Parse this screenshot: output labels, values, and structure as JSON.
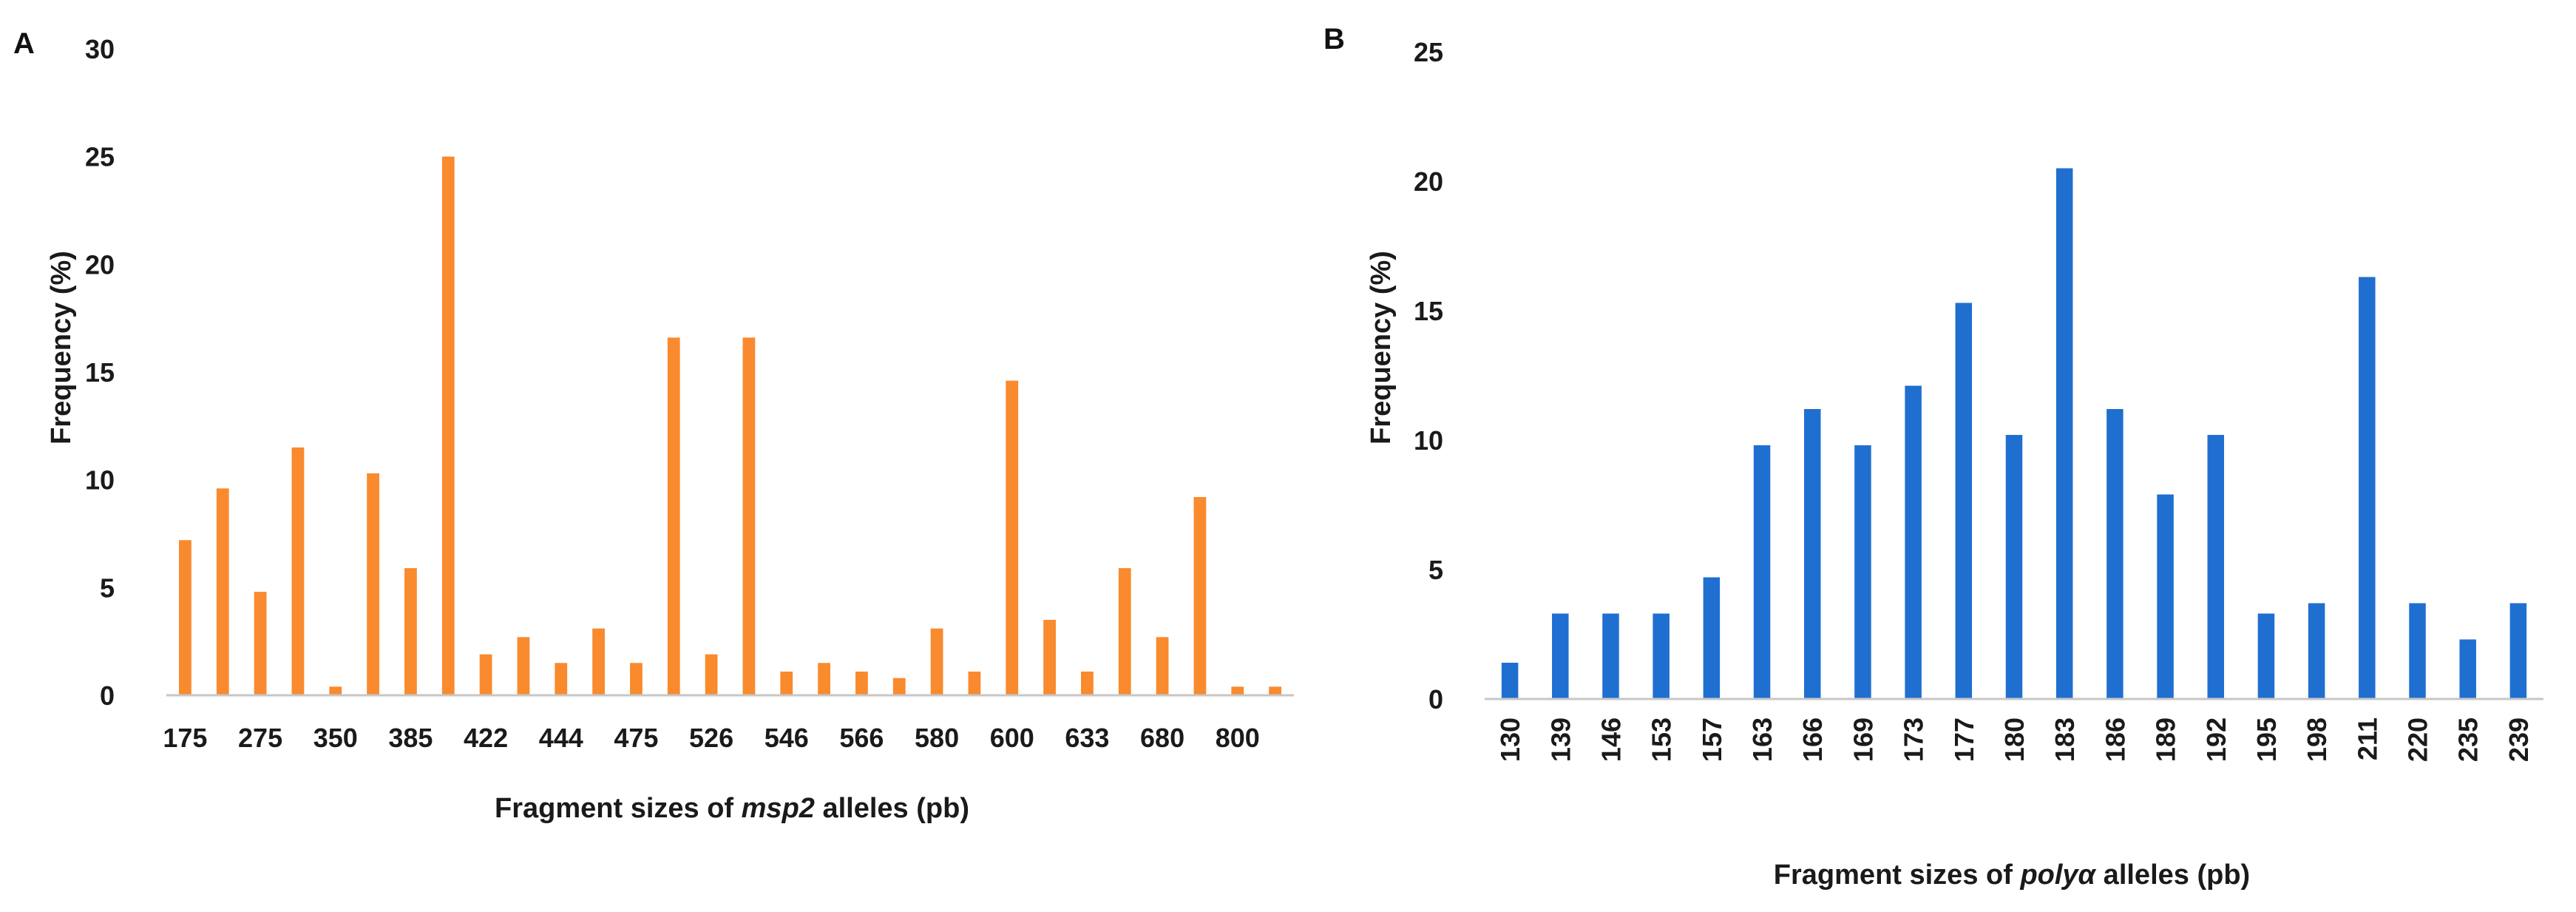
{
  "chart_data": [
    {
      "panel": "A",
      "type": "bar",
      "color": "#F98A2E",
      "ylabel": "Frequency (%)",
      "xlabel_parts": [
        "Fragment sizes of ",
        "msp2",
        " alleles (pb)"
      ],
      "ylim": [
        0,
        30
      ],
      "yticks": [
        0,
        5,
        10,
        15,
        20,
        25,
        30
      ],
      "grid": false,
      "legend": "none",
      "tick_label_every": 2,
      "categories": [
        "175",
        "",
        "275",
        "",
        "350",
        "",
        "385",
        "",
        "422",
        "",
        "444",
        "",
        "475",
        "",
        "526",
        "",
        "546",
        "",
        "566",
        "",
        "580",
        "",
        "600",
        "",
        "633",
        "",
        "680",
        "",
        "800",
        ""
      ],
      "values": [
        7.2,
        9.6,
        4.8,
        11.5,
        0.4,
        10.3,
        5.9,
        25.0,
        1.9,
        2.7,
        1.5,
        3.1,
        1.5,
        16.6,
        1.9,
        16.6,
        1.1,
        1.5,
        1.1,
        0.8,
        3.1,
        1.1,
        14.6,
        3.5,
        1.1,
        5.9,
        2.7,
        9.2,
        0.4,
        0.4
      ]
    },
    {
      "panel": "B",
      "type": "bar",
      "color": "#1F6FD0",
      "ylabel": "Frequency (%)",
      "xlabel_parts": [
        "Fragment sizes of ",
        "polyα",
        " alleles (pb)"
      ],
      "ylim": [
        0,
        25
      ],
      "yticks": [
        0,
        5,
        10,
        15,
        20,
        25
      ],
      "grid": false,
      "legend": "none",
      "tick_label_every": 1,
      "categories": [
        "130",
        "139",
        "146",
        "153",
        "157",
        "163",
        "166",
        "169",
        "173",
        "177",
        "180",
        "183",
        "186",
        "189",
        "192",
        "195",
        "198",
        "211",
        "220",
        "235",
        "239"
      ],
      "values": [
        1.4,
        3.3,
        3.3,
        3.3,
        4.7,
        9.8,
        11.2,
        9.8,
        12.1,
        15.3,
        10.2,
        20.5,
        11.2,
        7.9,
        10.2,
        3.3,
        3.7,
        16.3,
        3.7,
        2.3,
        3.7
      ]
    }
  ]
}
